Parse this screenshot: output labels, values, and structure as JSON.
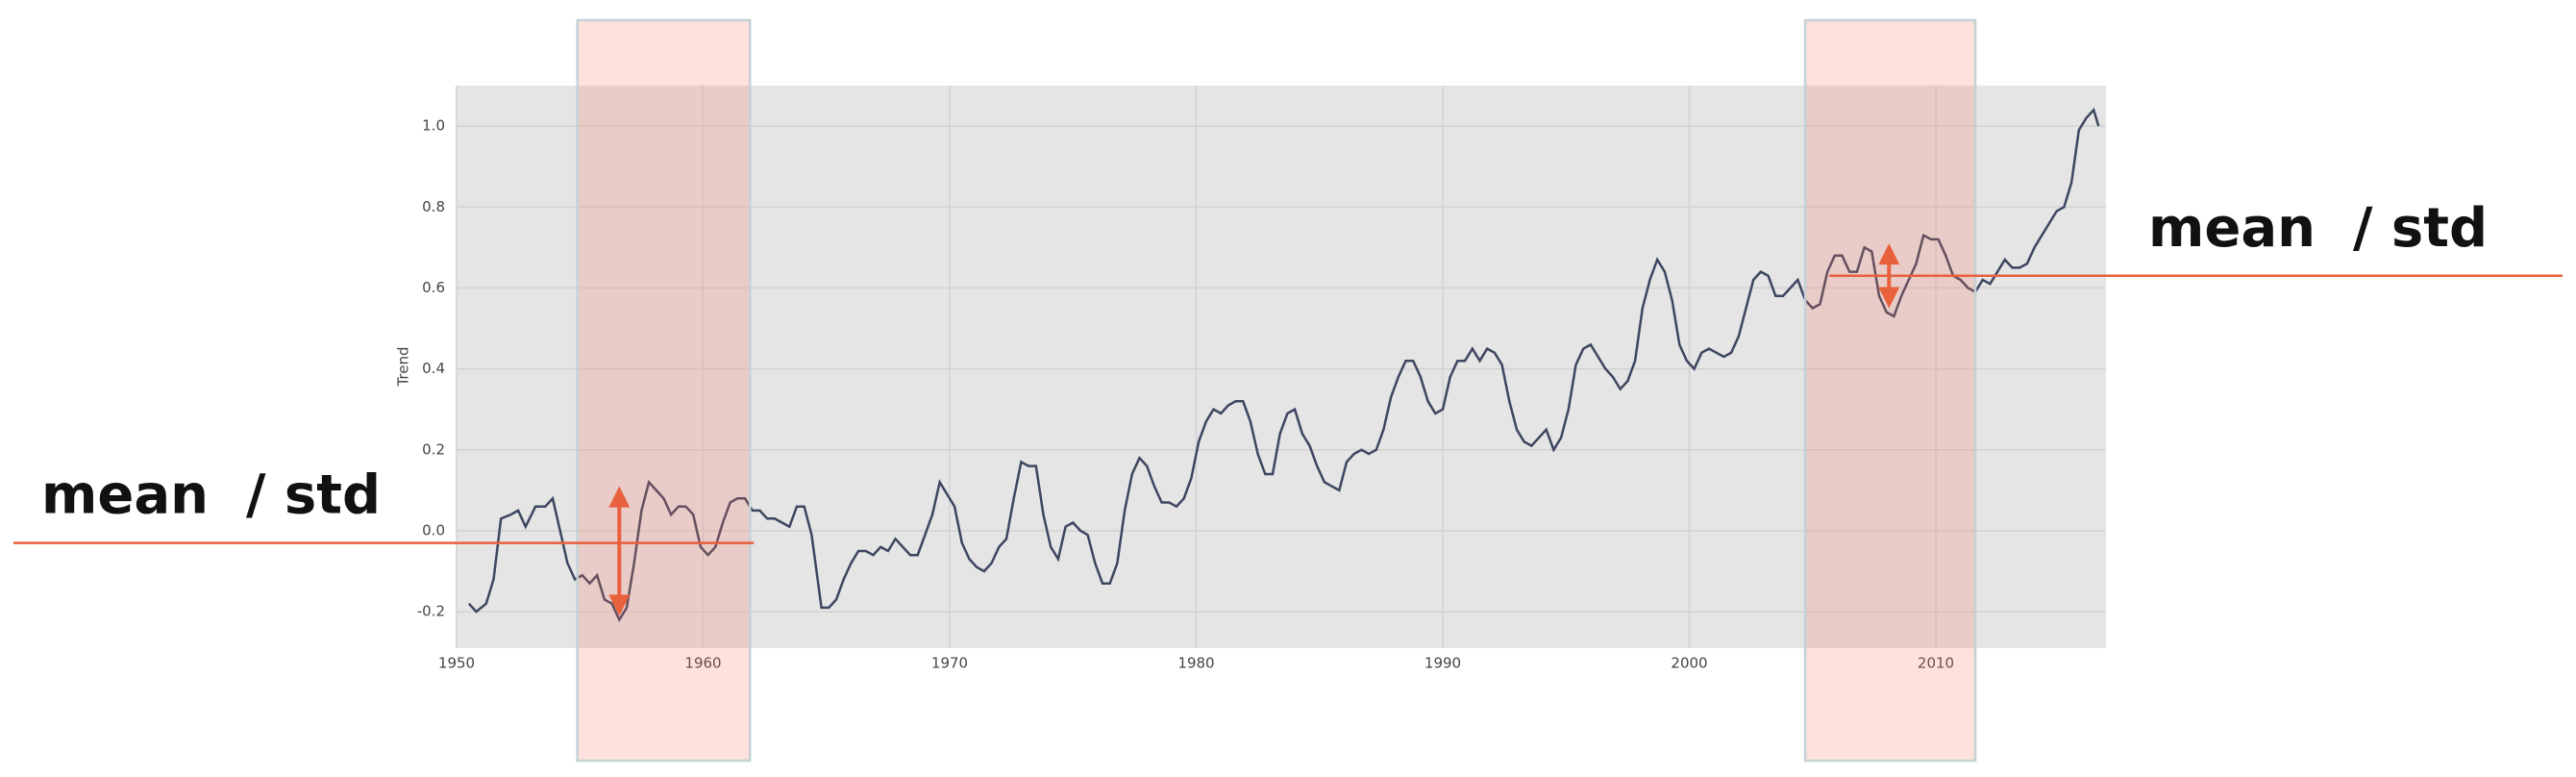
{
  "chart_data": {
    "type": "line",
    "y_label": "Trend",
    "x": [
      1950.5,
      1950.8,
      1951.2,
      1951.5,
      1951.8,
      1952.2,
      1952.5,
      1952.8,
      1953.2,
      1953.6,
      1953.9,
      1954.2,
      1954.5,
      1954.8,
      1955.1,
      1955.4,
      1955.7,
      1956.0,
      1956.3,
      1956.6,
      1956.9,
      1957.2,
      1957.5,
      1957.8,
      1958.1,
      1958.4,
      1958.7,
      1959.0,
      1959.3,
      1959.6,
      1959.9,
      1960.2,
      1960.5,
      1960.8,
      1961.1,
      1961.4,
      1961.7,
      1962.0,
      1962.3,
      1962.6,
      1962.9,
      1963.2,
      1963.5,
      1963.8,
      1964.1,
      1964.4,
      1964.6,
      1964.8,
      1965.1,
      1965.4,
      1965.7,
      1966.0,
      1966.3,
      1966.6,
      1966.9,
      1967.2,
      1967.5,
      1967.8,
      1968.1,
      1968.4,
      1968.7,
      1969.0,
      1969.3,
      1969.6,
      1969.9,
      1970.2,
      1970.5,
      1970.8,
      1971.1,
      1971.4,
      1971.7,
      1972.0,
      1972.3,
      1972.6,
      1972.9,
      1973.2,
      1973.5,
      1973.8,
      1974.1,
      1974.4,
      1974.7,
      1975.0,
      1975.3,
      1975.6,
      1975.9,
      1976.2,
      1976.5,
      1976.8,
      1977.1,
      1977.4,
      1977.7,
      1978.0,
      1978.3,
      1978.6,
      1978.9,
      1979.2,
      1979.5,
      1979.8,
      1980.1,
      1980.4,
      1980.7,
      1981.0,
      1981.3,
      1981.6,
      1981.9,
      1982.2,
      1982.5,
      1982.8,
      1983.1,
      1983.4,
      1983.7,
      1984.0,
      1984.3,
      1984.6,
      1984.9,
      1985.2,
      1985.5,
      1985.8,
      1986.1,
      1986.4,
      1986.7,
      1987.0,
      1987.3,
      1987.6,
      1987.9,
      1988.2,
      1988.5,
      1988.8,
      1989.1,
      1989.4,
      1989.7,
      1990.0,
      1990.3,
      1990.6,
      1990.9,
      1991.2,
      1991.5,
      1991.8,
      1992.1,
      1992.4,
      1992.7,
      1993.0,
      1993.3,
      1993.6,
      1993.9,
      1994.2,
      1994.5,
      1994.8,
      1995.1,
      1995.4,
      1995.7,
      1996.0,
      1996.3,
      1996.6,
      1996.9,
      1997.2,
      1997.5,
      1997.8,
      1998.1,
      1998.4,
      1998.7,
      1999.0,
      1999.3,
      1999.6,
      1999.9,
      2000.2,
      2000.5,
      2000.8,
      2001.1,
      2001.4,
      2001.7,
      2002.0,
      2002.3,
      2002.6,
      2002.9,
      2003.2,
      2003.5,
      2003.8,
      2004.1,
      2004.4,
      2004.7,
      2005.0,
      2005.3,
      2005.6,
      2005.9,
      2006.2,
      2006.5,
      2006.8,
      2007.1,
      2007.4,
      2007.7,
      2008.0,
      2008.3,
      2008.6,
      2008.9,
      2009.2,
      2009.5,
      2009.8,
      2010.1,
      2010.4,
      2010.7,
      2011.0,
      2011.3,
      2011.6,
      2011.9,
      2012.2,
      2012.5,
      2012.8,
      2013.1,
      2013.4,
      2013.7,
      2014.0,
      2014.3,
      2014.6,
      2014.9,
      2015.2,
      2015.5,
      2015.8,
      2016.1,
      2016.4,
      2016.6
    ],
    "values": [
      -0.18,
      -0.2,
      -0.18,
      -0.12,
      0.03,
      0.04,
      0.05,
      0.01,
      0.06,
      0.06,
      0.08,
      0.0,
      -0.08,
      -0.12,
      -0.11,
      -0.13,
      -0.11,
      -0.17,
      -0.18,
      -0.22,
      -0.19,
      -0.08,
      0.05,
      0.12,
      0.1,
      0.08,
      0.04,
      0.06,
      0.06,
      0.04,
      -0.04,
      -0.06,
      -0.04,
      0.02,
      0.07,
      0.08,
      0.08,
      0.05,
      0.05,
      0.03,
      0.03,
      0.02,
      0.01,
      0.06,
      0.06,
      -0.01,
      -0.1,
      -0.19,
      -0.19,
      -0.17,
      -0.12,
      -0.08,
      -0.05,
      -0.05,
      -0.06,
      -0.04,
      -0.05,
      -0.02,
      -0.04,
      -0.06,
      -0.06,
      -0.01,
      0.04,
      0.12,
      0.09,
      0.06,
      -0.03,
      -0.07,
      -0.09,
      -0.1,
      -0.08,
      -0.04,
      -0.02,
      0.08,
      0.17,
      0.16,
      0.16,
      0.04,
      -0.04,
      -0.07,
      0.01,
      0.02,
      0.0,
      -0.01,
      -0.08,
      -0.13,
      -0.13,
      -0.08,
      0.05,
      0.14,
      0.18,
      0.16,
      0.11,
      0.07,
      0.07,
      0.06,
      0.08,
      0.13,
      0.22,
      0.27,
      0.3,
      0.29,
      0.31,
      0.32,
      0.32,
      0.27,
      0.19,
      0.14,
      0.14,
      0.24,
      0.29,
      0.3,
      0.24,
      0.21,
      0.16,
      0.12,
      0.11,
      0.1,
      0.17,
      0.19,
      0.2,
      0.19,
      0.2,
      0.25,
      0.33,
      0.38,
      0.42,
      0.42,
      0.38,
      0.32,
      0.29,
      0.3,
      0.38,
      0.42,
      0.42,
      0.45,
      0.42,
      0.45,
      0.44,
      0.41,
      0.32,
      0.25,
      0.22,
      0.21,
      0.23,
      0.25,
      0.2,
      0.23,
      0.3,
      0.41,
      0.45,
      0.46,
      0.43,
      0.4,
      0.38,
      0.35,
      0.37,
      0.42,
      0.55,
      0.62,
      0.67,
      0.64,
      0.57,
      0.46,
      0.42,
      0.4,
      0.44,
      0.45,
      0.44,
      0.43,
      0.44,
      0.48,
      0.55,
      0.62,
      0.64,
      0.63,
      0.58,
      0.58,
      0.6,
      0.62,
      0.57,
      0.55,
      0.56,
      0.64,
      0.68,
      0.68,
      0.64,
      0.64,
      0.7,
      0.69,
      0.58,
      0.54,
      0.53,
      0.58,
      0.62,
      0.66,
      0.73,
      0.72,
      0.72,
      0.68,
      0.63,
      0.62,
      0.6,
      0.59,
      0.62,
      0.61,
      0.64,
      0.67,
      0.65,
      0.65,
      0.66,
      0.7,
      0.73,
      0.76,
      0.79,
      0.8,
      0.86,
      0.99,
      1.02,
      1.04,
      1.0
    ],
    "color": "#3d4660",
    "xlim": [
      1950,
      2016.9
    ],
    "ylim": [
      -0.29,
      1.1
    ],
    "xticks": [
      1950,
      1960,
      1970,
      1980,
      1990,
      2000,
      2010
    ],
    "yticks": [
      {
        "value": -0.2,
        "label": "-0.2"
      },
      {
        "value": 0,
        "label": "0.0"
      },
      {
        "value": 0.2,
        "label": "0.2"
      },
      {
        "value": 0.4,
        "label": "0.4"
      },
      {
        "value": 0.6,
        "label": "0.6"
      },
      {
        "value": 0.8,
        "label": "0.8"
      },
      {
        "value": 1,
        "label": "1.0"
      }
    ],
    "grid": true,
    "annotations": [
      {
        "label": "mean  / std",
        "span": [
          1954.9,
          1961.9
        ],
        "mean": -0.03,
        "arrow_x": 1956.6,
        "arrow": [
          -0.21,
          0.11
        ],
        "color": "#e8603c"
      },
      {
        "label": "mean  / std",
        "span": [
          2004.7,
          2011.6
        ],
        "mean": 0.63,
        "arrow_x": 2008.1,
        "arrow": [
          0.55,
          0.71
        ],
        "color": "#e8603c"
      }
    ]
  }
}
